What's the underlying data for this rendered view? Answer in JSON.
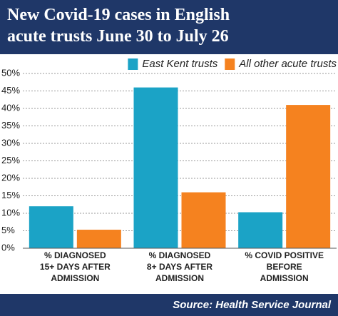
{
  "chart_data": {
    "type": "bar",
    "title": "New Covid-19 cases in English\nacute trusts June 30 to July 26",
    "source": "Source: Health Service Journal",
    "categories": [
      "% DIAGNOSED\n15+ DAYS AFTER\nADMISSION",
      "% DIAGNOSED\n8+ DAYS AFTER\nADMISSION",
      "% COVID POSITIVE\nBEFORE\nADMISSION"
    ],
    "series": [
      {
        "name": "East Kent trusts",
        "color": "#1ba3c6",
        "values": [
          12,
          46,
          10.3
        ]
      },
      {
        "name": "All other acute trusts",
        "color": "#f5821f",
        "values": [
          5.3,
          16,
          41
        ]
      }
    ],
    "ylim": [
      0,
      50
    ],
    "yticks": [
      {
        "value": 0,
        "label": "0%"
      },
      {
        "value": 5,
        "label": "5%"
      },
      {
        "value": 10,
        "label": "10%"
      },
      {
        "value": 15,
        "label": "15%"
      },
      {
        "value": 20,
        "label": "20%"
      },
      {
        "value": 25,
        "label": "25%"
      },
      {
        "value": 30,
        "label": "30%"
      },
      {
        "value": 35,
        "label": "35%"
      },
      {
        "value": 40,
        "label": "40%"
      },
      {
        "value": 45,
        "label": "45%"
      },
      {
        "value": 50,
        "label": "50%"
      }
    ],
    "grid": true,
    "legend": "top-right"
  }
}
